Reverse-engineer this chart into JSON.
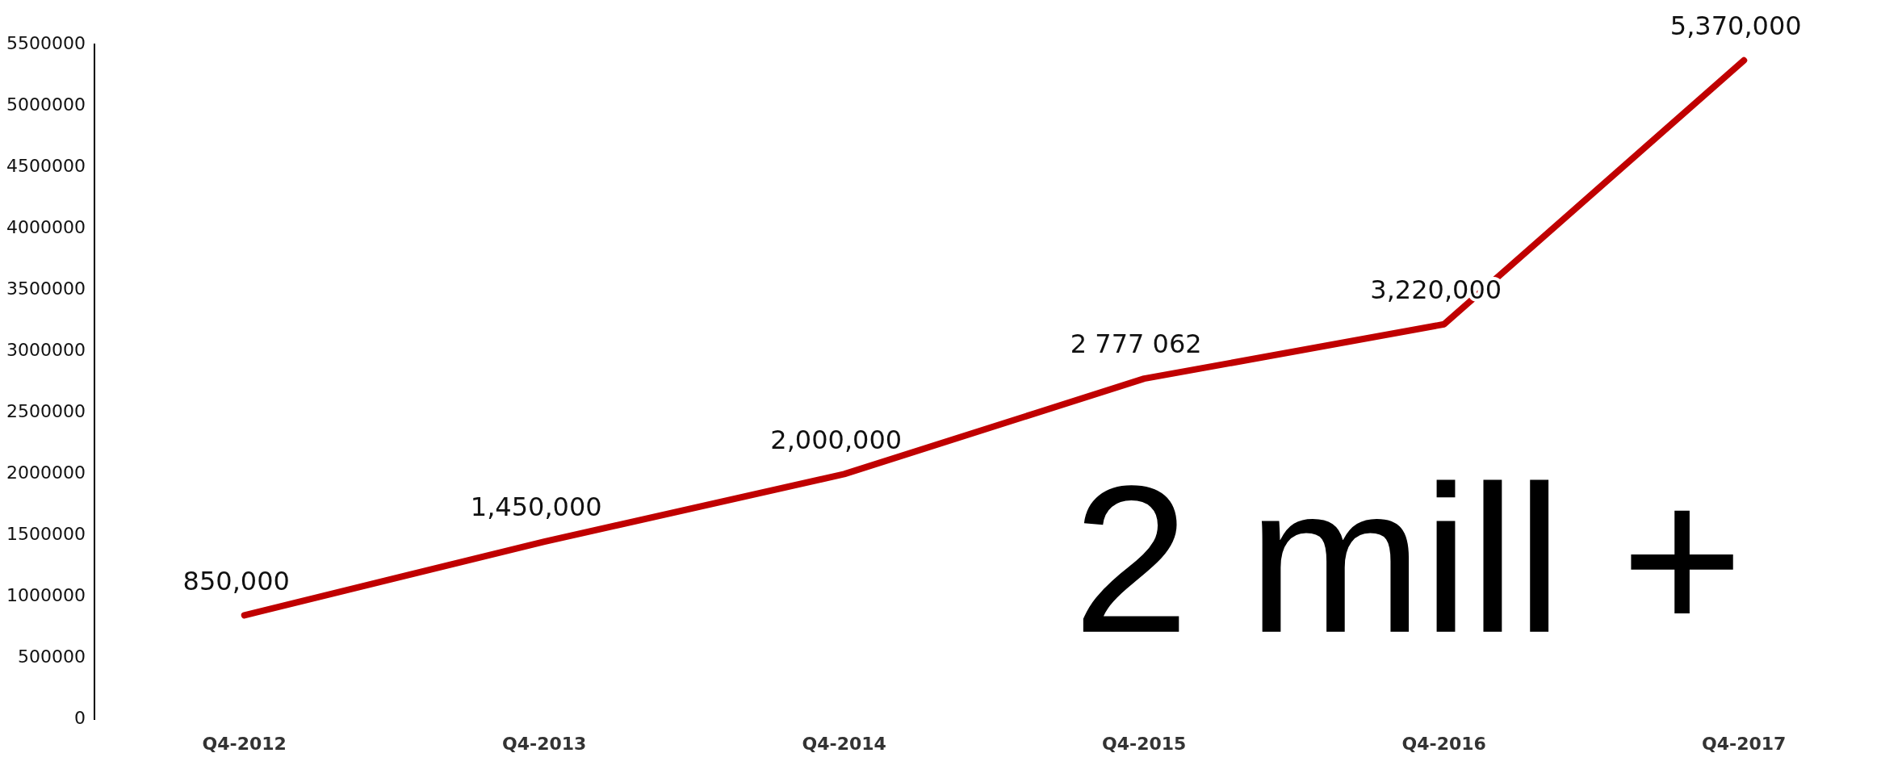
{
  "chart_data": {
    "type": "line",
    "categories": [
      "Q4-2012",
      "Q4-2013",
      "Q4-2014",
      "Q4-2015",
      "Q4-2016",
      "Q4-2017"
    ],
    "series": [
      {
        "color": "#c00000",
        "values": [
          850000,
          1450000,
          2000000,
          2777062,
          3220000,
          5370000
        ],
        "value_labels": [
          "850,000",
          "1,450,000",
          "2,000,000",
          "2 777 062",
          "3,220,000",
          "5,370,000"
        ]
      }
    ],
    "ylim": [
      0,
      5500000
    ],
    "yticks": [
      0,
      500000,
      1000000,
      1500000,
      2000000,
      2500000,
      3000000,
      3500000,
      4000000,
      4500000,
      5000000,
      5500000
    ],
    "grid": false,
    "legend": false,
    "marker": "none",
    "line_style": "solid",
    "annotations": [
      "2 mill +"
    ]
  }
}
